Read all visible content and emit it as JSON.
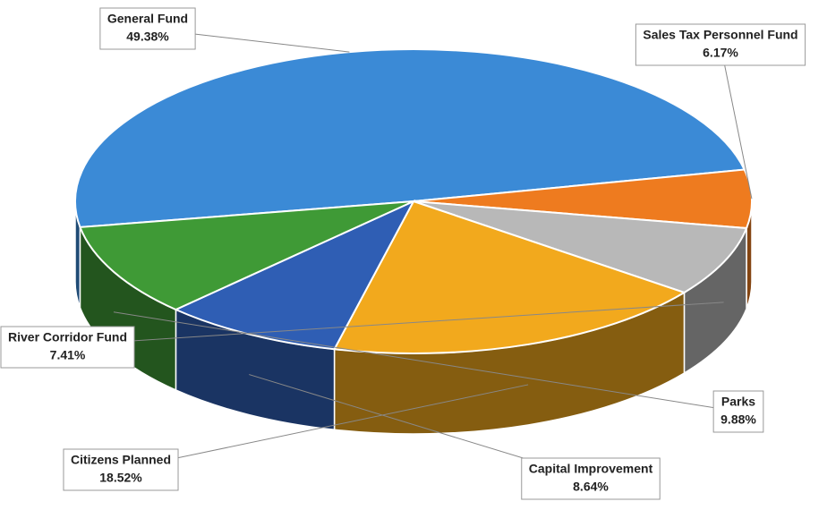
{
  "chart_data": {
    "type": "pie",
    "categories": [
      "General Fund",
      "Sales Tax Personnel Fund",
      "River Corridor Fund",
      "Citizens Planned",
      "Capital Improvement",
      "Parks"
    ],
    "values": [
      49.38,
      6.17,
      7.41,
      18.52,
      8.64,
      9.88
    ],
    "value_labels": [
      "49.38%",
      "6.17%",
      "7.41%",
      "18.52%",
      "8.64%",
      "9.88%"
    ],
    "colors": [
      "#3b8ad6",
      "#ee7b1f",
      "#b8b8b8",
      "#f2a91d",
      "#2f5eb4",
      "#3f9a36"
    ]
  }
}
